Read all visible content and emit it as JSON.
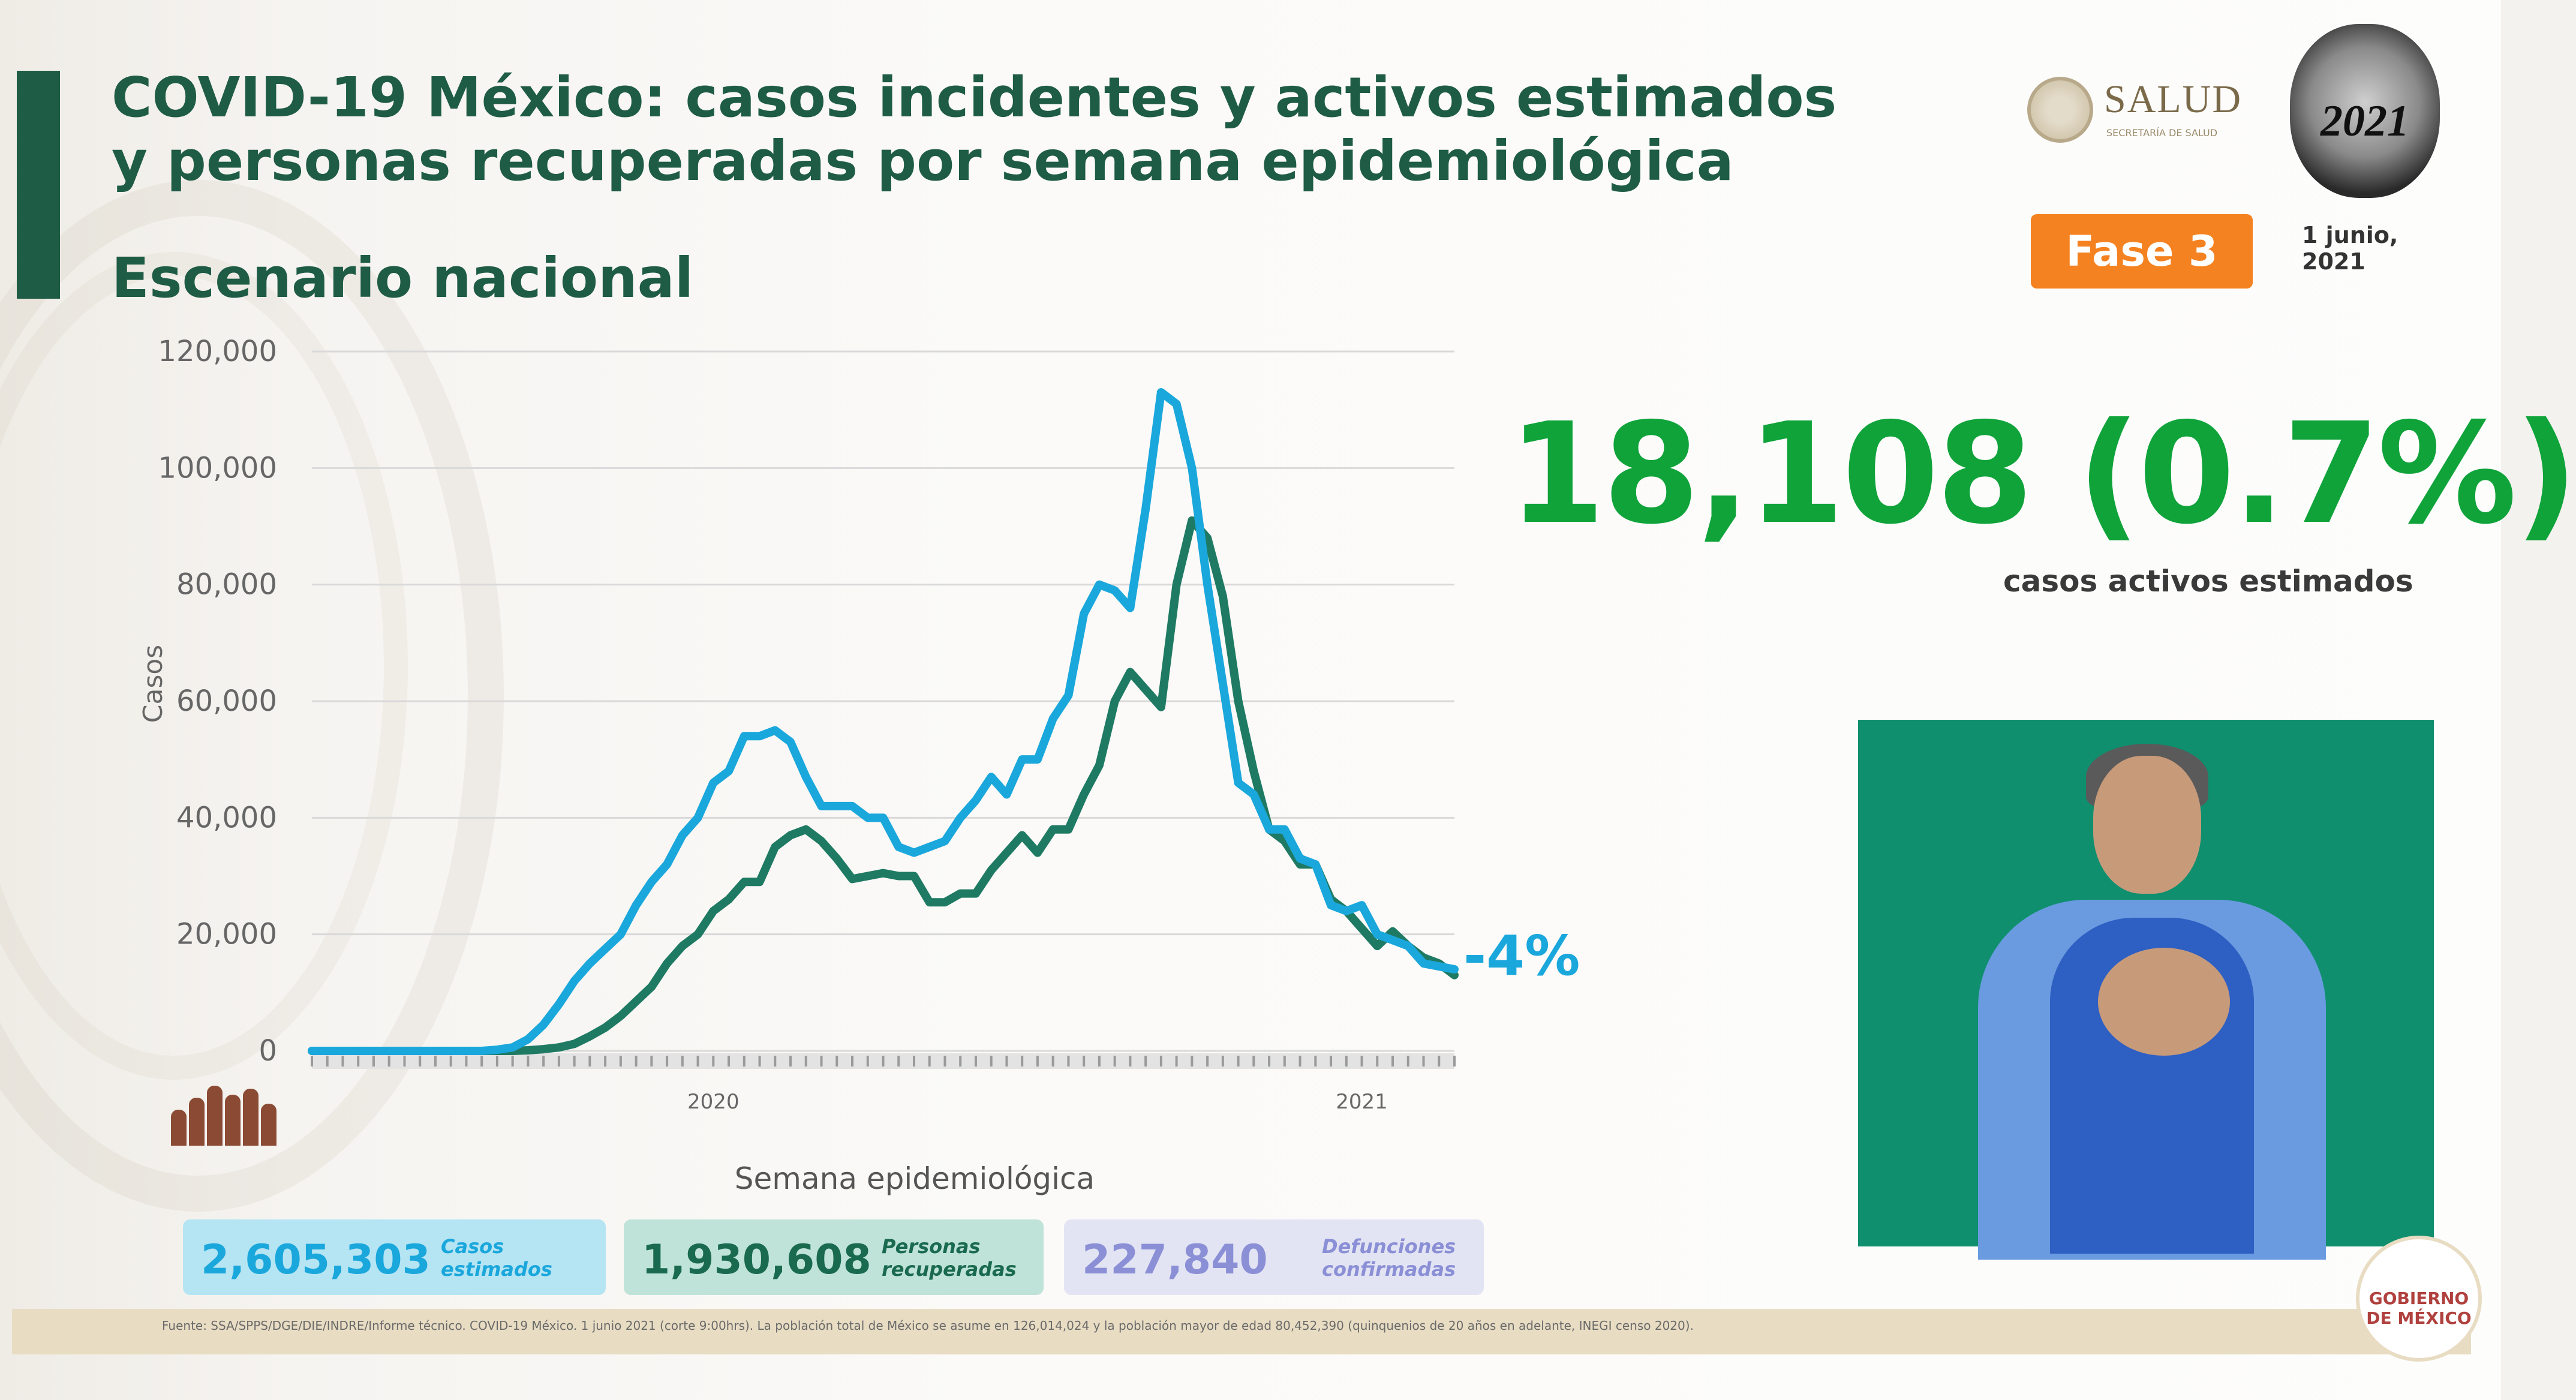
{
  "header": {
    "title": "COVID-19 México: casos incidentes y activos estimados y personas recuperadas por semana epidemiológica",
    "subtitle": "Escenario nacional",
    "salud_logo_text": "SALUD",
    "salud_logo_subtext": "SECRETARÍA DE SALUD",
    "year_logo_text": "2021",
    "phase_badge": "Fase 3",
    "date": "1 junio, 2021"
  },
  "highlight": {
    "value": "18,108 (0.7%)",
    "caption": "casos activos estimados"
  },
  "chart_data": {
    "type": "line",
    "title": "",
    "xlabel": "Semana epidemiológica",
    "ylabel": "Casos",
    "ylim": [
      0,
      120000
    ],
    "y_ticks": [
      "0",
      "20,000",
      "40,000",
      "60,000",
      "80,000",
      "100,000",
      "120,000"
    ],
    "x_year_labels": [
      {
        "label": "2020",
        "week_index": 26
      },
      {
        "label": "2021",
        "week_index": 68
      }
    ],
    "end_annotation": "-4%",
    "grid": true,
    "series": [
      {
        "color": "#1aa7dc",
        "values": [
          0,
          0,
          0,
          0,
          0,
          0,
          0,
          0,
          0,
          0,
          0,
          0,
          200,
          600,
          2000,
          4500,
          8000,
          12000,
          15000,
          17500,
          20000,
          25000,
          29000,
          32000,
          37000,
          40000,
          46000,
          48000,
          54000,
          54000,
          55000,
          53000,
          47000,
          42000,
          42000,
          42000,
          40000,
          40000,
          35000,
          34000,
          35000,
          36000,
          40000,
          43000,
          47000,
          44000,
          50000,
          50000,
          57000,
          61000,
          75000,
          80000,
          79000,
          76000,
          93000,
          113000,
          111000,
          100000,
          80000,
          63000,
          46000,
          44000,
          38000,
          38000,
          33000,
          32000,
          25000,
          24000,
          25000,
          20000,
          19000,
          18000,
          15000,
          14500,
          14000
        ]
      },
      {
        "color": "#1f7a63",
        "values": [
          0,
          0,
          0,
          0,
          0,
          0,
          0,
          0,
          0,
          0,
          0,
          0,
          0,
          0,
          100,
          300,
          600,
          1200,
          2500,
          4000,
          6000,
          8500,
          11000,
          15000,
          18000,
          20000,
          24000,
          26000,
          29000,
          29000,
          35000,
          37000,
          38000,
          36000,
          33000,
          29500,
          30000,
          30500,
          30000,
          30000,
          25500,
          25500,
          27000,
          27000,
          31000,
          34000,
          37000,
          34000,
          38000,
          38000,
          44000,
          49000,
          60000,
          65000,
          62000,
          59000,
          80000,
          91000,
          88000,
          78000,
          60000,
          48000,
          38000,
          36000,
          32000,
          32000,
          26000,
          24000,
          21000,
          18000,
          20500,
          18000,
          16000,
          15000,
          13000
        ]
      }
    ]
  },
  "stats": [
    {
      "value": "2,605,303",
      "label_line1": "Casos",
      "label_line2": "estimados"
    },
    {
      "value": "1,930,608",
      "label_line1": "Personas",
      "label_line2": "recuperadas"
    },
    {
      "value": "227,840",
      "label_line1": "Defunciones",
      "label_line2": "confirmadas"
    }
  ],
  "footer": {
    "source": "Fuente: SSA/SPPS/DGE/DIE/INDRE/Informe técnico. COVID-19 México. 1 junio 2021 (corte 9:00hrs). La población total de México se asume en 126,014,024 y la población mayor de edad 80,452,390 (quinquenios de 20 años en adelante, INEGI censo 2020)."
  },
  "footer_logo_text": "GOBIERNO DE MÉXICO"
}
